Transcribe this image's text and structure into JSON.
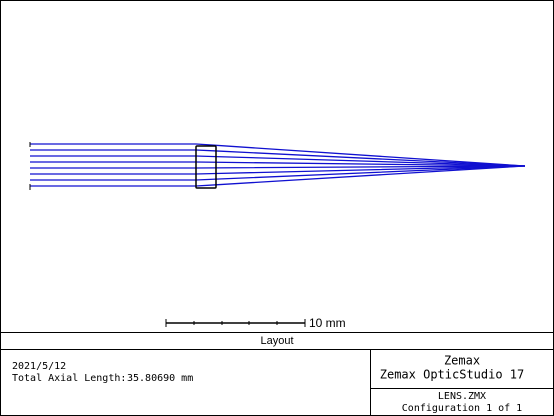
{
  "scale_bar": {
    "label": "10 mm"
  },
  "title_bar": {
    "title": "Layout"
  },
  "info": {
    "date": "2021/5/12",
    "axial_length_label": "Total Axial Length:",
    "axial_length_value": "35.80690 mm"
  },
  "software": {
    "vendor": "Zemax",
    "product": "Zemax OpticStudio 17"
  },
  "file": {
    "name": "LENS.ZMX",
    "configuration": "Configuration 1 of 1"
  }
}
